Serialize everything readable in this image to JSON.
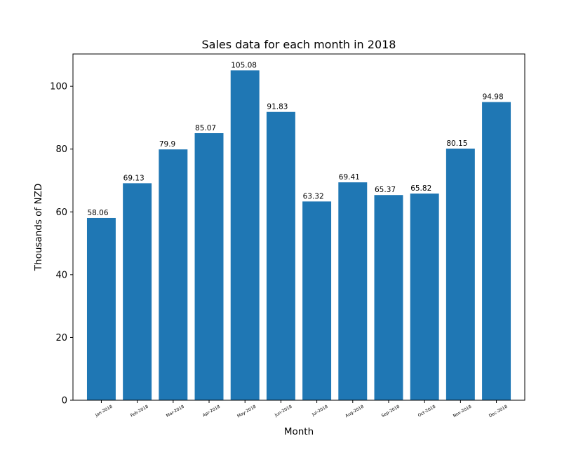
{
  "chart_data": {
    "type": "bar",
    "title": "Sales data for each month in 2018",
    "xlabel": "Month",
    "ylabel": "Thousands of NZD",
    "categories": [
      "Jan-2018",
      "Feb-2018",
      "Mar-2018",
      "Apr-2018",
      "May-2018",
      "Jun-2018",
      "Jul-2018",
      "Aug-2018",
      "Sep-2018",
      "Oct-2018",
      "Nov-2018",
      "Dec-2018"
    ],
    "values": [
      58.06,
      69.13,
      79.9,
      85.07,
      105.08,
      91.83,
      63.32,
      69.41,
      65.37,
      65.82,
      80.15,
      94.98
    ],
    "data_labels": [
      "58.06",
      "69.13",
      "79.9",
      "85.07",
      "105.08",
      "91.83",
      "63.32",
      "69.41",
      "65.37",
      "65.82",
      "80.15",
      "94.98"
    ],
    "ylim": [
      0,
      110.3
    ],
    "yticks": [
      0,
      20,
      40,
      60,
      80,
      100
    ],
    "grid": false,
    "bar_color": "#1f77b4"
  }
}
